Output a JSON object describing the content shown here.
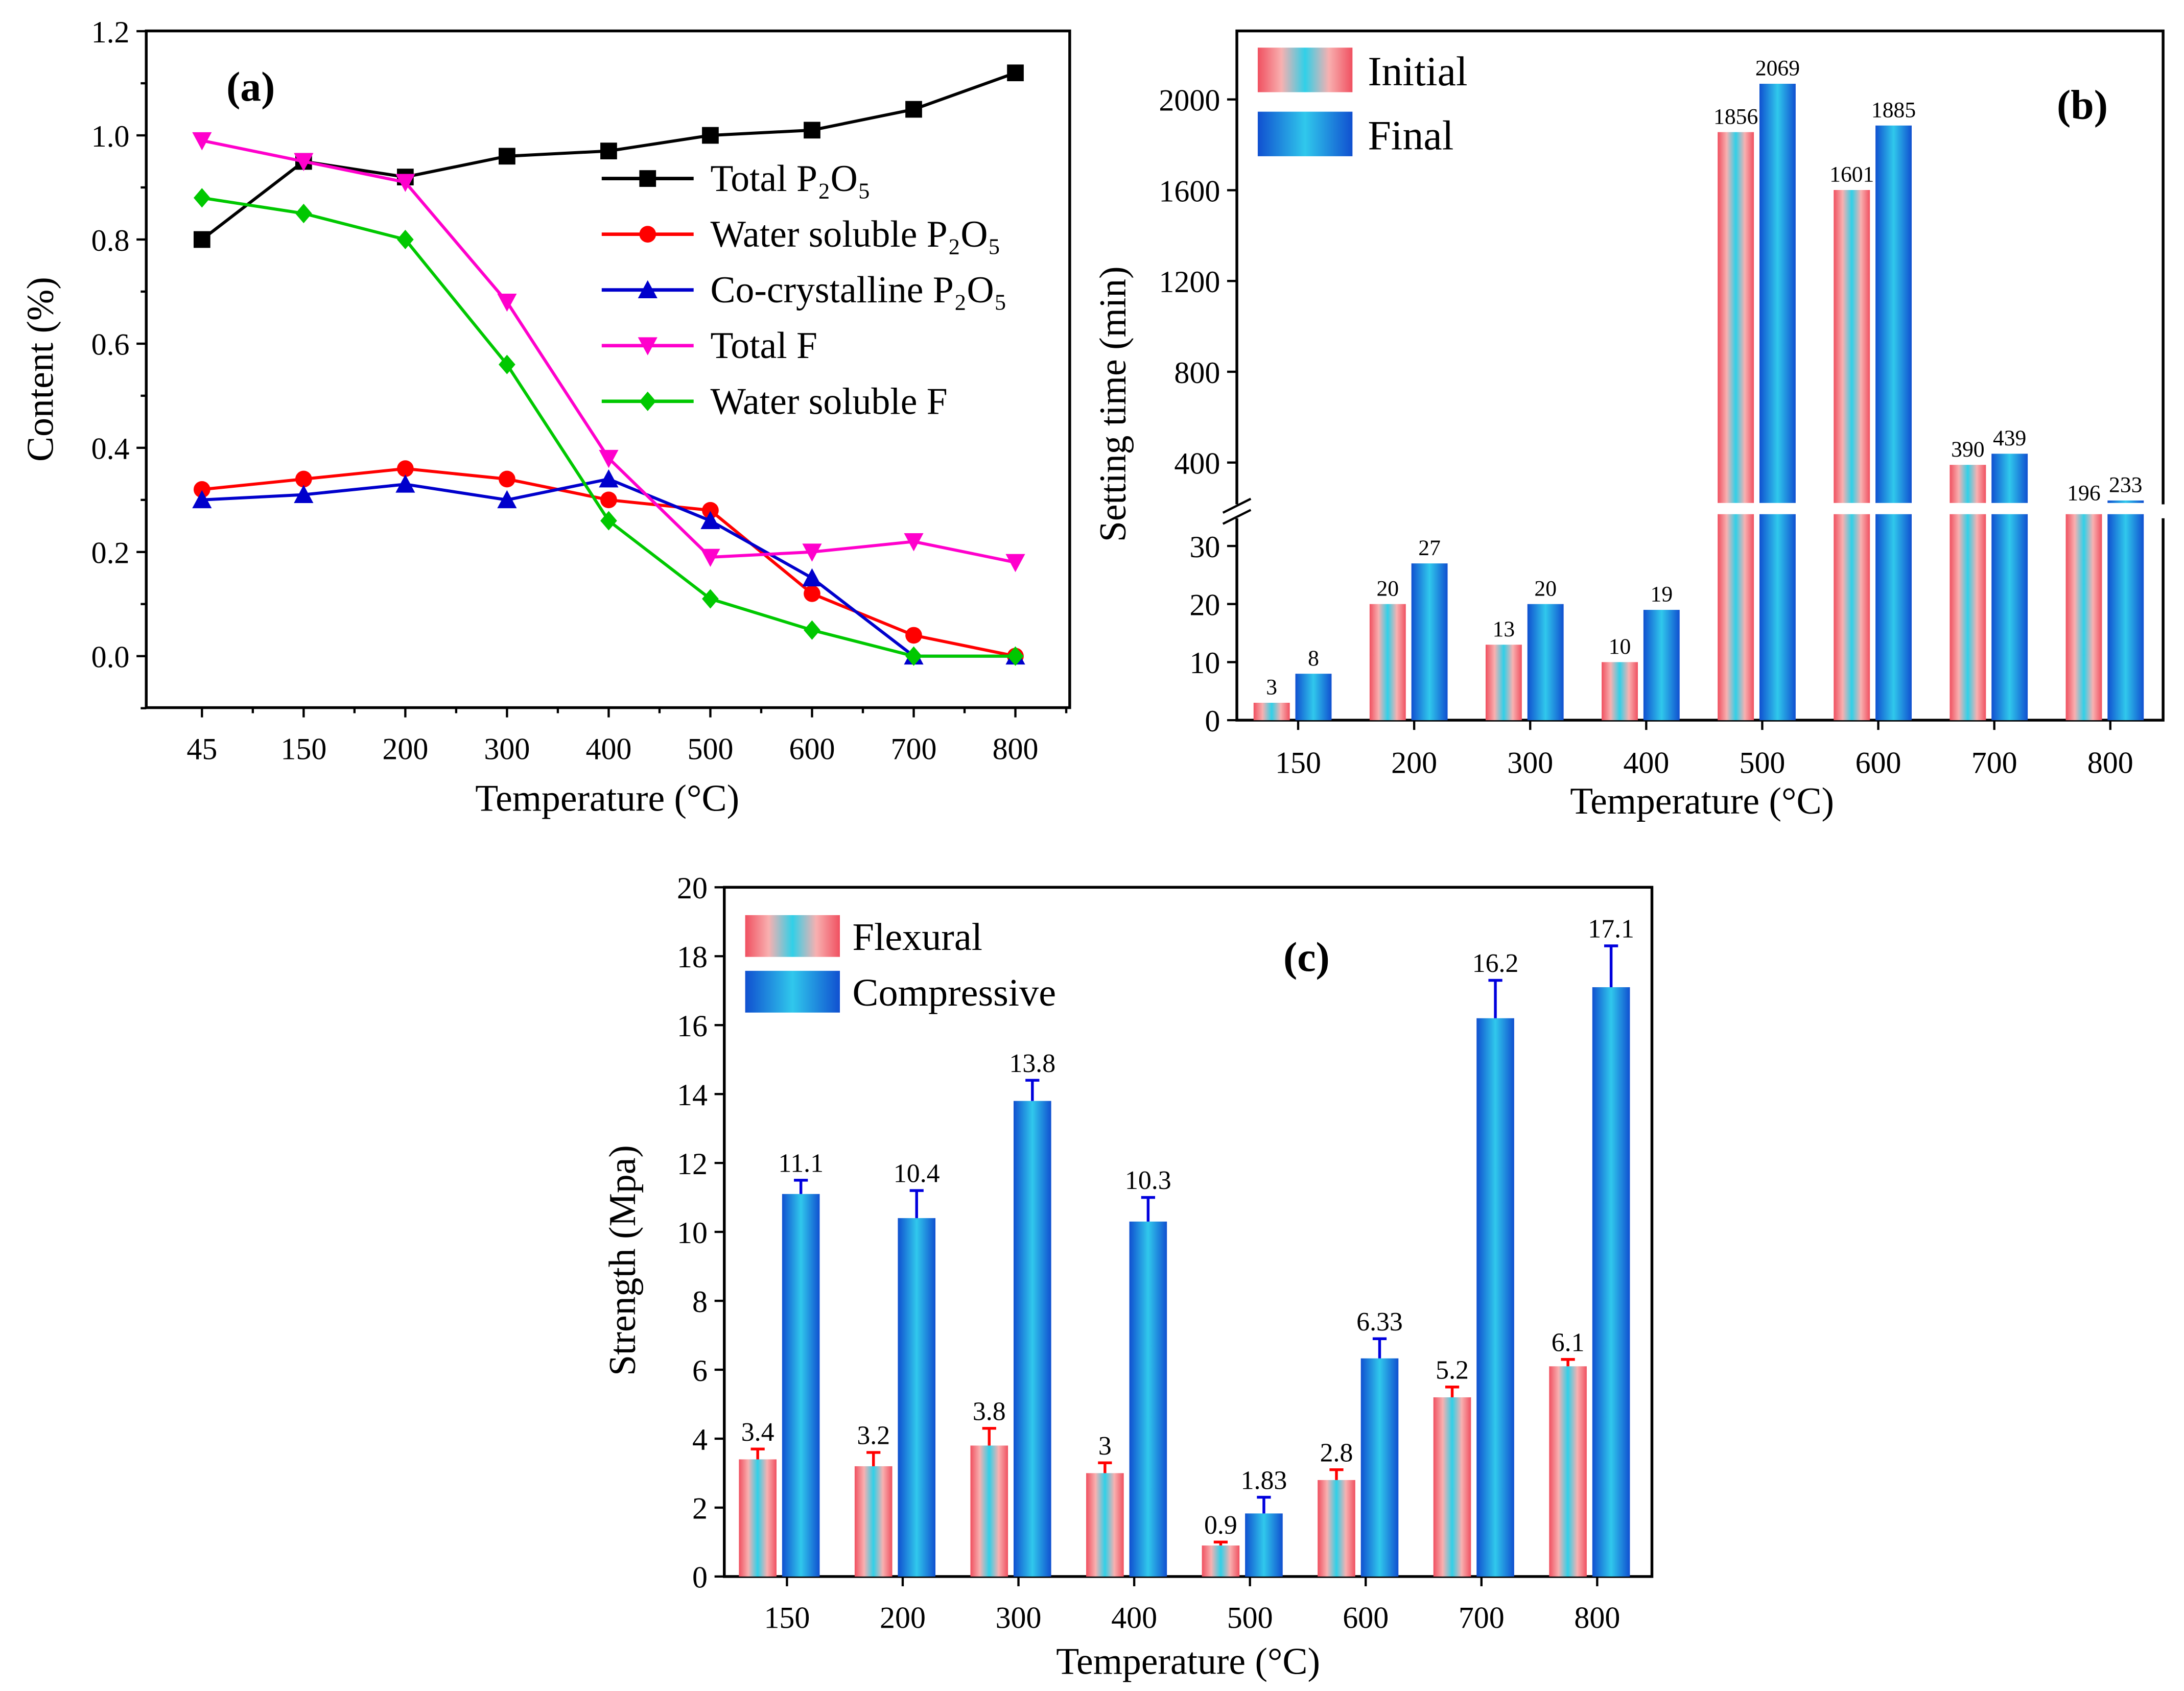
{
  "chart_data": [
    {
      "panel": "(a)",
      "type": "line",
      "xlabel": "Temperature (°C)",
      "ylabel": "Content (%)",
      "categories": [
        "45",
        "150",
        "200",
        "300",
        "400",
        "500",
        "600",
        "700",
        "800"
      ],
      "ylim": [
        -0.1,
        1.2
      ],
      "yticks": [
        "0.0",
        "0.2",
        "0.4",
        "0.6",
        "0.8",
        "1.0",
        "1.2"
      ],
      "legend_position": "center-right",
      "series": [
        {
          "name": "Total P₂O₅",
          "color": "#000000",
          "marker": "square",
          "values": [
            0.8,
            0.95,
            0.92,
            0.96,
            0.97,
            1.0,
            1.01,
            1.05,
            1.12
          ]
        },
        {
          "name": "Water soluble P₂O₅",
          "color": "#ff0000",
          "marker": "circle",
          "values": [
            0.32,
            0.34,
            0.36,
            0.34,
            0.3,
            0.28,
            0.12,
            0.04,
            0.0
          ]
        },
        {
          "name": "Co-crystalline P₂O₅",
          "color": "#0000cc",
          "marker": "triangle-up",
          "values": [
            0.3,
            0.31,
            0.33,
            0.3,
            0.34,
            0.26,
            0.15,
            0.0,
            0.0
          ]
        },
        {
          "name": "Total F",
          "color": "#ff00cc",
          "marker": "triangle-down",
          "values": [
            0.99,
            0.95,
            0.91,
            0.68,
            0.38,
            0.19,
            0.2,
            0.22,
            0.18
          ]
        },
        {
          "name": "Water soluble F",
          "color": "#00c800",
          "marker": "diamond",
          "values": [
            0.88,
            0.85,
            0.8,
            0.56,
            0.26,
            0.11,
            0.05,
            0.0,
            0.0
          ]
        }
      ]
    },
    {
      "panel": "(b)",
      "type": "bar",
      "xlabel": "Temperature (°C)",
      "ylabel": "Setting time (min)",
      "categories": [
        "150",
        "200",
        "300",
        "400",
        "500",
        "600",
        "700",
        "800"
      ],
      "axis_break": [
        35,
        200
      ],
      "lower_yticks": [
        "0",
        "10",
        "20",
        "30"
      ],
      "upper_yticks": [
        "400",
        "800",
        "1200",
        "1600",
        "2000"
      ],
      "legend_position": "top-left",
      "series": [
        {
          "name": "Initial",
          "values": [
            3,
            20,
            13,
            10,
            1856,
            1601,
            390,
            196
          ],
          "labels": [
            "3",
            "20",
            "13",
            "10",
            "1856",
            "1601",
            "390",
            "196"
          ]
        },
        {
          "name": "Final",
          "values": [
            8,
            27,
            20,
            19,
            2069,
            1885,
            439,
            233
          ],
          "labels": [
            "8",
            "27",
            "20",
            "19",
            "2069",
            "1885",
            "439",
            "233"
          ]
        }
      ]
    },
    {
      "panel": "(c)",
      "type": "bar",
      "xlabel": "Temperature (°C)",
      "ylabel": "Strength (Mpa)",
      "categories": [
        "150",
        "200",
        "300",
        "400",
        "500",
        "600",
        "700",
        "800"
      ],
      "ylim": [
        0,
        20
      ],
      "yticks": [
        "0",
        "2",
        "4",
        "6",
        "8",
        "10",
        "12",
        "14",
        "16",
        "18",
        "20"
      ],
      "legend_position": "top-left",
      "series": [
        {
          "name": "Flexural",
          "values": [
            3.4,
            3.2,
            3.8,
            3,
            0.9,
            2.8,
            5.2,
            6.1
          ],
          "labels": [
            "3.4",
            "3.2",
            "3.8",
            "3",
            "0.9",
            "2.8",
            "5.2",
            "6.1"
          ],
          "error_top": [
            3.7,
            3.6,
            4.3,
            3.3,
            1.0,
            3.1,
            5.5,
            6.3
          ],
          "error_color": "#ff0000"
        },
        {
          "name": "Compressive",
          "values": [
            11.1,
            10.4,
            13.8,
            10.3,
            1.83,
            6.33,
            16.2,
            17.1
          ],
          "labels": [
            "11.1",
            "10.4",
            "13.8",
            "10.3",
            "1.83",
            "6.33",
            "16.2",
            "17.1"
          ],
          "error_top": [
            11.5,
            11.2,
            14.4,
            11.0,
            2.3,
            6.9,
            17.3,
            18.3
          ],
          "error_color": "#0000dd"
        }
      ]
    }
  ]
}
